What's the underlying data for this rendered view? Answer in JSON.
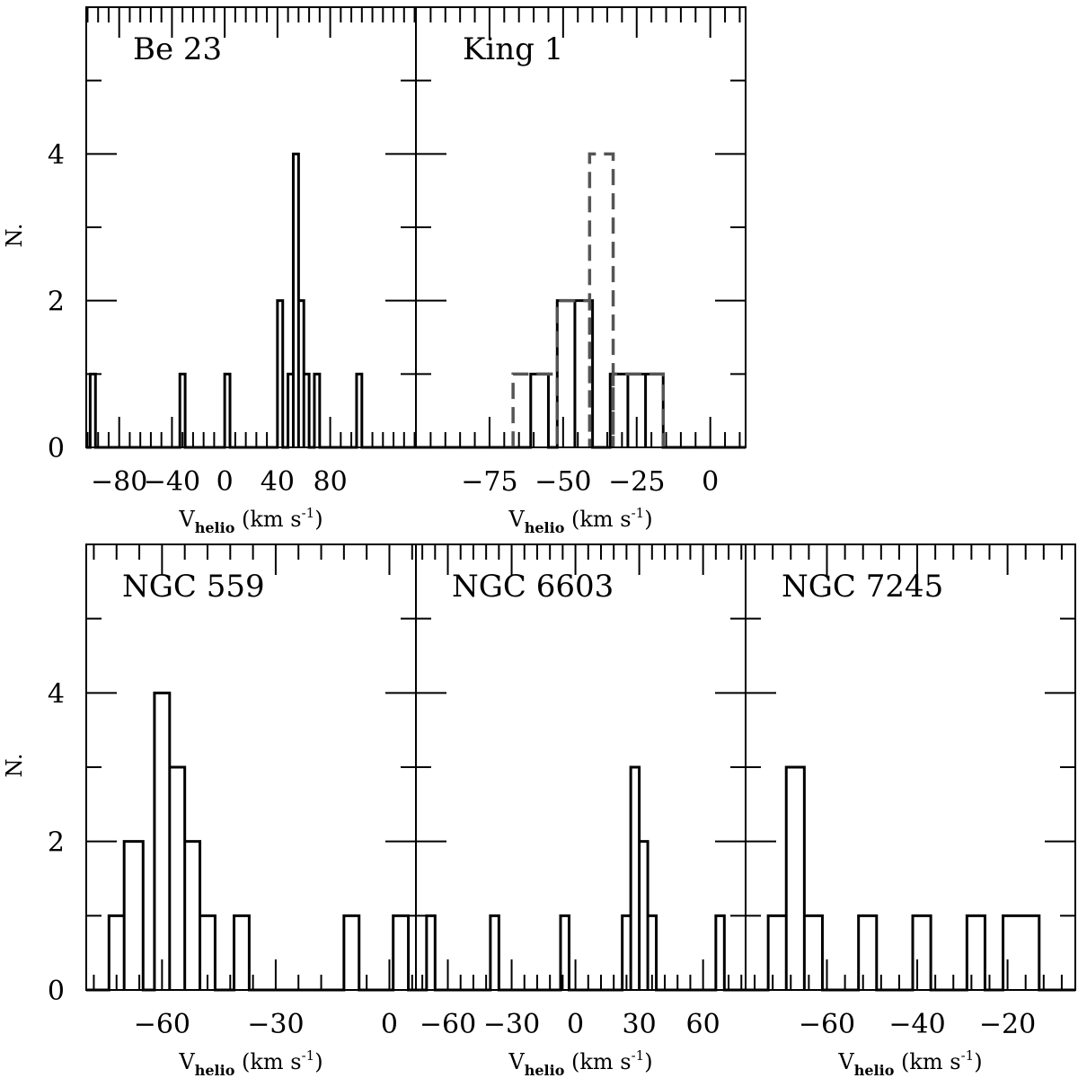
{
  "figure": {
    "x_axis_label": {
      "main": "V",
      "sub": "helio",
      "units": " (km s",
      "sup": "-1",
      "close": ")"
    },
    "y_axis_label": "N."
  },
  "chart_data": [
    {
      "id": "be23",
      "type": "histogram",
      "cluster_label": "Be 23",
      "xlabel": "V_helio (km s^-1)",
      "ylabel": "N.",
      "xlim": [
        -105,
        145
      ],
      "ylim": [
        0,
        6
      ],
      "xticks": [
        -80,
        -40,
        0,
        40,
        80
      ],
      "xtick_labels": [
        "−80",
        "−40",
        "0",
        "40",
        "80"
      ],
      "yticks": [
        0,
        2,
        4
      ],
      "ytick_labels": [
        "0",
        "2",
        "4"
      ],
      "series": [
        {
          "style": "solid",
          "color": "#000000",
          "bins": [
            [
              -102,
              -98,
              1
            ],
            [
              -34,
              -30,
              1
            ],
            [
              0,
              4,
              1
            ],
            [
              40,
              44,
              2
            ],
            [
              48,
              52,
              1
            ],
            [
              52,
              56,
              4
            ],
            [
              56,
              60,
              2
            ],
            [
              60,
              64,
              1
            ],
            [
              68,
              72,
              1
            ],
            [
              100,
              104,
              1
            ]
          ]
        }
      ]
    },
    {
      "id": "king1",
      "type": "histogram",
      "cluster_label": "King 1",
      "xlabel": "V_helio (km s^-1)",
      "ylabel": "N.",
      "xlim": [
        -100,
        12
      ],
      "ylim": [
        0,
        6
      ],
      "xticks": [
        -75,
        -50,
        -25,
        0
      ],
      "xtick_labels": [
        "−75",
        "−50",
        "−25",
        "0"
      ],
      "yticks": [
        0,
        2,
        4
      ],
      "ytick_labels": [
        "0",
        "2",
        "4"
      ],
      "series": [
        {
          "style": "solid",
          "color": "#000000",
          "bins": [
            [
              -61,
              -55,
              1
            ],
            [
              -52,
              -46,
              2
            ],
            [
              -46,
              -40,
              2
            ],
            [
              -34,
              -28,
              1
            ],
            [
              -28,
              -22,
              1
            ],
            [
              -22,
              -16,
              1
            ]
          ]
        },
        {
          "style": "dashed",
          "color": "#555555",
          "bins": [
            [
              -67,
              -52,
              1
            ],
            [
              -52,
              -41,
              2
            ],
            [
              -41,
              -33,
              4
            ],
            [
              -33,
              -16,
              1
            ]
          ]
        }
      ]
    },
    {
      "id": "ngc559",
      "type": "histogram",
      "cluster_label": "NGC 559",
      "xlabel": "V_helio (km s^-1)",
      "ylabel": "N.",
      "xlim": [
        -80,
        7
      ],
      "ylim": [
        0,
        6
      ],
      "xticks": [
        -60,
        -30,
        0
      ],
      "xtick_labels": [
        "−60",
        "−30",
        "0"
      ],
      "yticks": [
        0,
        2,
        4
      ],
      "ytick_labels": [
        "0",
        "2",
        "4"
      ],
      "series": [
        {
          "style": "solid",
          "color": "#000000",
          "bins": [
            [
              -74,
              -70,
              1
            ],
            [
              -70,
              -65,
              2
            ],
            [
              -62,
              -58,
              4
            ],
            [
              -58,
              -54,
              3
            ],
            [
              -54,
              -50,
              2
            ],
            [
              -50,
              -46,
              1
            ],
            [
              -41,
              -37,
              1
            ],
            [
              -12,
              -8,
              1
            ],
            [
              1,
              5,
              1
            ]
          ]
        }
      ]
    },
    {
      "id": "ngc6603",
      "type": "histogram",
      "cluster_label": "NGC 6603",
      "xlabel": "V_helio (km s^-1)",
      "ylabel": "N.",
      "xlim": [
        -75,
        80
      ],
      "ylim": [
        0,
        6
      ],
      "xticks": [
        -60,
        -30,
        0,
        30,
        60
      ],
      "xtick_labels": [
        "−60",
        "−30",
        "0",
        "30",
        "60"
      ],
      "yticks": [
        0,
        2,
        4
      ],
      "ytick_labels": [
        "0",
        "2",
        "4"
      ],
      "series": [
        {
          "style": "solid",
          "color": "#000000",
          "bins": [
            [
              -70,
              -66,
              1
            ],
            [
              -40,
              -36,
              1
            ],
            [
              -7,
              -3,
              1
            ],
            [
              22,
              26,
              1
            ],
            [
              26,
              30,
              3
            ],
            [
              30,
              34,
              2
            ],
            [
              34,
              38,
              1
            ],
            [
              66,
              70,
              1
            ]
          ]
        }
      ]
    },
    {
      "id": "ngc7245",
      "type": "histogram",
      "cluster_label": "NGC 7245",
      "xlabel": "V_helio (km s^-1)",
      "ylabel": "N.",
      "xlim": [
        -78,
        -5
      ],
      "ylim": [
        0,
        6
      ],
      "xticks": [
        -60,
        -40,
        -20
      ],
      "xtick_labels": [
        "−60",
        "−40",
        "−20"
      ],
      "yticks": [
        0,
        2,
        4
      ],
      "ytick_labels": [
        "0",
        "2",
        "4"
      ],
      "series": [
        {
          "style": "solid",
          "color": "#000000",
          "bins": [
            [
              -73,
              -69,
              1
            ],
            [
              -69,
              -65,
              3
            ],
            [
              -65,
              -61,
              1
            ],
            [
              -53,
              -49,
              1
            ],
            [
              -41,
              -37,
              1
            ],
            [
              -29,
              -25,
              1
            ],
            [
              -21,
              -13,
              1
            ]
          ]
        }
      ]
    }
  ]
}
